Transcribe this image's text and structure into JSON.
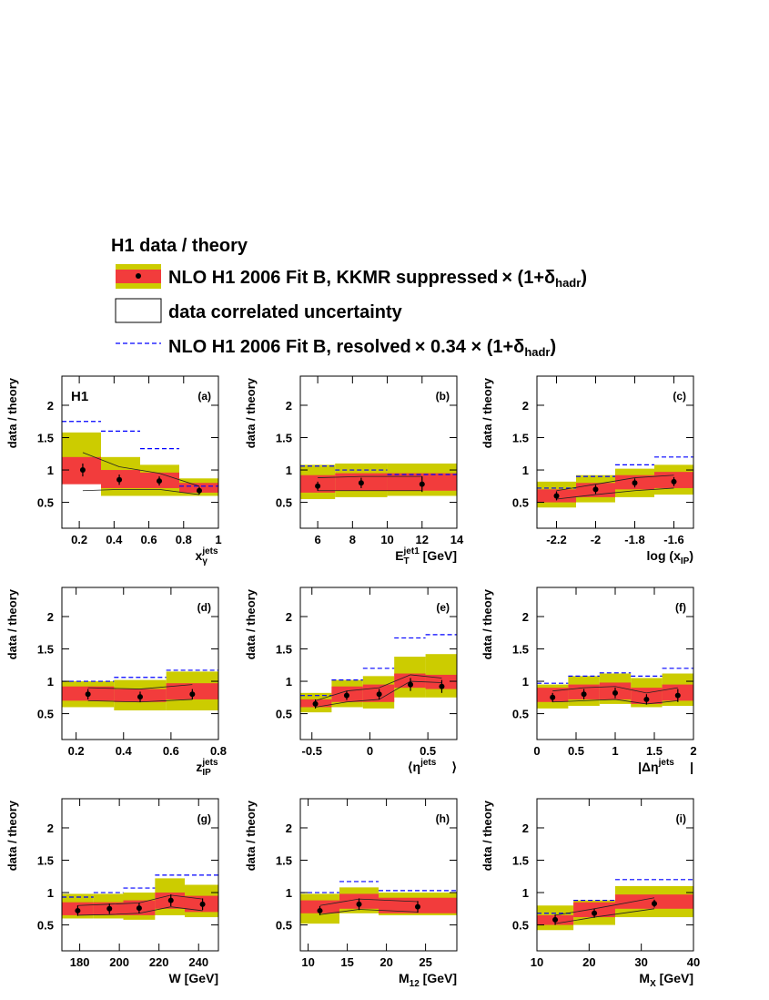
{
  "legend": {
    "title": "H1 data / theory",
    "entries": [
      {
        "parts": [
          "NLO H1 2006 Fit B, KKMR suppressed",
          "× (1+δ",
          "hadr",
          ")"
        ]
      },
      {
        "parts": [
          "data correlated uncertainty"
        ]
      },
      {
        "parts": [
          "NLO H1 2006 Fit B, resolved",
          "× 0.34 × (1+δ",
          "hadr",
          ")"
        ]
      }
    ]
  },
  "chart_data": [
    {
      "type": "ratio",
      "label": "(a)",
      "annotation": "H1",
      "ylabel": "data / theory",
      "xlabel": {
        "main": "x",
        "sup": "jets",
        "sub": "γ"
      },
      "xlim": [
        0.1,
        1
      ],
      "xticks": [
        0.2,
        0.4,
        0.6,
        0.8,
        1
      ],
      "ylim": [
        0.1,
        2.45
      ],
      "yticks": [
        0.5,
        1,
        1.5,
        2
      ],
      "bins": [
        0.1,
        0.325,
        0.55,
        0.775,
        1
      ],
      "outer_band": {
        "color": "#cccc00",
        "low": [
          0.9,
          0.6,
          0.6,
          0.6
        ],
        "high": [
          1.58,
          1.2,
          1.08,
          0.87
        ]
      },
      "inner_band": {
        "color": "#f23c3c",
        "low": [
          0.78,
          0.72,
          0.72,
          0.65
        ],
        "high": [
          1.2,
          1.0,
          0.96,
          0.8
        ]
      },
      "resolved": {
        "color": "#0000ff",
        "values": [
          1.75,
          1.6,
          1.33,
          0.75
        ]
      },
      "x": [
        0.22,
        0.43,
        0.66,
        0.89
      ],
      "values": [
        1.0,
        0.85,
        0.83,
        0.68
      ],
      "errors": [
        0.1,
        0.08,
        0.07,
        0.06
      ],
      "corr_low": [
        0.68,
        0.7,
        0.7,
        0.62
      ],
      "corr_high": [
        1.27,
        1.05,
        0.95,
        0.75
      ]
    },
    {
      "type": "ratio",
      "label": "(b)",
      "ylabel": "data / theory",
      "xlabel": {
        "main": "E",
        "sup": "jet1",
        "sub": "T",
        "tail": " [GeV]"
      },
      "xlim": [
        5,
        14
      ],
      "xticks": [
        6,
        8,
        10,
        12,
        14
      ],
      "ylim": [
        0.1,
        2.45
      ],
      "yticks": [
        0.5,
        1,
        1.5,
        2
      ],
      "bins": [
        5,
        7,
        10,
        14
      ],
      "outer_band": {
        "color": "#cccc00",
        "low": [
          0.55,
          0.58,
          0.6
        ],
        "high": [
          1.08,
          1.1,
          1.1
        ]
      },
      "inner_band": {
        "color": "#f23c3c",
        "low": [
          0.65,
          0.68,
          0.68
        ],
        "high": [
          0.92,
          0.95,
          0.95
        ]
      },
      "resolved": {
        "color": "#0000ff",
        "values": [
          1.06,
          1.0,
          0.93
        ]
      },
      "x": [
        6,
        8.5,
        12
      ],
      "values": [
        0.75,
        0.8,
        0.78
      ],
      "errors": [
        0.07,
        0.08,
        0.12
      ],
      "corr_low": [
        0.68,
        0.68,
        0.68
      ],
      "corr_high": [
        0.88,
        0.9,
        0.9
      ]
    },
    {
      "type": "ratio",
      "label": "(c)",
      "ylabel": "data / theory",
      "xlabel": {
        "main": "log (x",
        "sub": "IP",
        "tail": ")"
      },
      "xlim": [
        -2.3,
        -1.5
      ],
      "xticks": [
        -2.2,
        -2,
        -1.8,
        -1.6
      ],
      "ylim": [
        0.1,
        2.45
      ],
      "yticks": [
        0.5,
        1,
        1.5,
        2
      ],
      "bins": [
        -2.3,
        -2.1,
        -1.9,
        -1.7,
        -1.5
      ],
      "outer_band": {
        "color": "#cccc00",
        "low": [
          0.42,
          0.5,
          0.58,
          0.62
        ],
        "high": [
          0.82,
          0.92,
          1.02,
          1.08
        ]
      },
      "inner_band": {
        "color": "#f23c3c",
        "low": [
          0.5,
          0.58,
          0.7,
          0.72
        ],
        "high": [
          0.7,
          0.8,
          0.92,
          0.97
        ]
      },
      "resolved": {
        "color": "#0000ff",
        "values": [
          0.72,
          0.9,
          1.08,
          1.2
        ]
      },
      "x": [
        -2.2,
        -2,
        -1.8,
        -1.6
      ],
      "values": [
        0.6,
        0.7,
        0.8,
        0.82
      ],
      "errors": [
        0.07,
        0.07,
        0.07,
        0.07
      ],
      "corr_low": [
        0.55,
        0.62,
        0.68,
        0.72
      ],
      "corr_high": [
        0.68,
        0.78,
        0.88,
        0.92
      ]
    },
    {
      "type": "ratio",
      "label": "(d)",
      "ylabel": "data / theory",
      "xlabel": {
        "main": "z",
        "sup": "jets",
        "sub": "IP"
      },
      "xlim": [
        0.14,
        0.8
      ],
      "xticks": [
        0.2,
        0.4,
        0.6,
        0.8
      ],
      "ylim": [
        0.1,
        2.45
      ],
      "yticks": [
        0.5,
        1,
        1.5,
        2
      ],
      "bins": [
        0.14,
        0.36,
        0.58,
        0.8
      ],
      "outer_band": {
        "color": "#cccc00",
        "low": [
          0.6,
          0.55,
          0.55
        ],
        "high": [
          1.0,
          1.02,
          1.15
        ]
      },
      "inner_band": {
        "color": "#f23c3c",
        "low": [
          0.7,
          0.68,
          0.72
        ],
        "high": [
          0.92,
          0.88,
          0.97
        ]
      },
      "resolved": {
        "color": "#0000ff",
        "values": [
          1.0,
          1.06,
          1.17
        ]
      },
      "x": [
        0.25,
        0.47,
        0.69
      ],
      "values": [
        0.8,
        0.76,
        0.8
      ],
      "errors": [
        0.08,
        0.08,
        0.08
      ],
      "corr_low": [
        0.7,
        0.68,
        0.72
      ],
      "corr_high": [
        0.9,
        0.88,
        0.95
      ]
    },
    {
      "type": "ratio",
      "label": "(e)",
      "ylabel": "data / theory",
      "xlabel": {
        "main": "⟨η",
        "sup": "jets",
        "tail": "⟩"
      },
      "xlim": [
        -0.6,
        0.75
      ],
      "xticks": [
        -0.5,
        0,
        0.5
      ],
      "ylim": [
        0.1,
        2.45
      ],
      "yticks": [
        0.5,
        1,
        1.5,
        2
      ],
      "bins": [
        -0.6,
        -0.33,
        -0.06,
        0.21,
        0.48,
        0.75
      ],
      "outer_band": {
        "color": "#cccc00",
        "low": [
          0.52,
          0.6,
          0.58,
          0.75,
          0.75
        ],
        "high": [
          0.82,
          1.02,
          1.08,
          1.38,
          1.42
        ]
      },
      "inner_band": {
        "color": "#f23c3c",
        "low": [
          0.6,
          0.68,
          0.68,
          0.9,
          0.88
        ],
        "high": [
          0.72,
          0.92,
          0.95,
          1.12,
          1.1
        ]
      },
      "resolved": {
        "color": "#0000ff",
        "values": [
          0.78,
          1.02,
          1.2,
          1.67,
          1.72
        ]
      },
      "x": [
        -0.47,
        -0.2,
        0.08,
        0.35,
        0.62
      ],
      "values": [
        0.65,
        0.78,
        0.8,
        0.95,
        0.92
      ],
      "errors": [
        0.07,
        0.07,
        0.08,
        0.1,
        0.1
      ],
      "corr_low": [
        0.6,
        0.68,
        0.72,
        1.0,
        0.98
      ],
      "corr_high": [
        0.7,
        0.85,
        0.9,
        1.1,
        1.05
      ]
    },
    {
      "type": "ratio",
      "label": "(f)",
      "ylabel": "data / theory",
      "xlabel": {
        "main": "|Δη",
        "sup": "jets",
        "tail": "|"
      },
      "xlim": [
        0,
        2
      ],
      "xticks": [
        0,
        0.5,
        1,
        1.5,
        2
      ],
      "ylim": [
        0.1,
        2.45
      ],
      "yticks": [
        0.5,
        1,
        1.5,
        2
      ],
      "bins": [
        0,
        0.4,
        0.8,
        1.2,
        1.6,
        2
      ],
      "outer_band": {
        "color": "#cccc00",
        "low": [
          0.58,
          0.62,
          0.65,
          0.6,
          0.62
        ],
        "high": [
          0.95,
          1.08,
          1.12,
          1.05,
          1.12
        ]
      },
      "inner_band": {
        "color": "#f23c3c",
        "low": [
          0.68,
          0.72,
          0.72,
          0.65,
          0.7
        ],
        "high": [
          0.9,
          0.95,
          0.98,
          0.9,
          0.95
        ]
      },
      "resolved": {
        "color": "#0000ff",
        "values": [
          0.97,
          1.08,
          1.13,
          1.08,
          1.2
        ]
      },
      "x": [
        0.2,
        0.6,
        1,
        1.4,
        1.8
      ],
      "values": [
        0.75,
        0.8,
        0.82,
        0.72,
        0.78
      ],
      "errors": [
        0.07,
        0.08,
        0.08,
        0.08,
        0.1
      ],
      "corr_low": [
        0.68,
        0.7,
        0.72,
        0.65,
        0.7
      ],
      "corr_high": [
        0.85,
        0.9,
        0.92,
        0.82,
        0.9
      ]
    },
    {
      "type": "ratio",
      "label": "(g)",
      "ylabel": "data / theory",
      "xlabel": {
        "main": "W [GeV]"
      },
      "xlim": [
        171,
        250
      ],
      "xticks": [
        180,
        200,
        220,
        240
      ],
      "ylim": [
        0.1,
        2.45
      ],
      "yticks": [
        0.5,
        1,
        1.5,
        2
      ],
      "bins": [
        171,
        187,
        202,
        218,
        233,
        250
      ],
      "outer_band": {
        "color": "#cccc00",
        "low": [
          0.6,
          0.6,
          0.58,
          0.65,
          0.62
        ],
        "high": [
          0.98,
          0.98,
          1.0,
          1.22,
          1.12
        ]
      },
      "inner_band": {
        "color": "#f23c3c",
        "low": [
          0.65,
          0.65,
          0.65,
          0.75,
          0.7
        ],
        "high": [
          0.85,
          0.85,
          0.88,
          1.0,
          0.95
        ]
      },
      "resolved": {
        "color": "#0000ff",
        "values": [
          0.93,
          1.0,
          1.07,
          1.27,
          1.27
        ]
      },
      "x": [
        179,
        195,
        210,
        226,
        242
      ],
      "values": [
        0.72,
        0.75,
        0.76,
        0.88,
        0.82
      ],
      "errors": [
        0.08,
        0.08,
        0.08,
        0.09,
        0.09
      ],
      "corr_low": [
        0.65,
        0.66,
        0.68,
        0.78,
        0.72
      ],
      "corr_high": [
        0.8,
        0.82,
        0.84,
        0.96,
        0.9
      ]
    },
    {
      "type": "ratio",
      "label": "(h)",
      "ylabel": "data / theory",
      "xlabel": {
        "main": "M",
        "sub": "12",
        "tail": " [GeV]"
      },
      "xlim": [
        9,
        29
      ],
      "xticks": [
        10,
        15,
        20,
        25
      ],
      "ylim": [
        0.1,
        2.45
      ],
      "yticks": [
        0.5,
        1,
        1.5,
        2
      ],
      "bins": [
        9,
        14,
        19,
        29
      ],
      "outer_band": {
        "color": "#cccc00",
        "low": [
          0.52,
          0.68,
          0.65
        ],
        "high": [
          0.98,
          1.08,
          1.0
        ]
      },
      "inner_band": {
        "color": "#f23c3c",
        "low": [
          0.68,
          0.75,
          0.68
        ],
        "high": [
          0.88,
          0.98,
          0.92
        ]
      },
      "resolved": {
        "color": "#0000ff",
        "values": [
          1.0,
          1.17,
          1.03
        ]
      },
      "x": [
        11.5,
        16.5,
        24
      ],
      "values": [
        0.72,
        0.82,
        0.78
      ],
      "errors": [
        0.07,
        0.09,
        0.09
      ],
      "corr_low": [
        0.66,
        0.74,
        0.7
      ],
      "corr_high": [
        0.8,
        0.9,
        0.86
      ]
    },
    {
      "type": "ratio",
      "label": "(i)",
      "ylabel": "data / theory",
      "xlabel": {
        "main": "M",
        "sub": "X",
        "tail": " [GeV]"
      },
      "xlim": [
        10,
        40
      ],
      "xticks": [
        10,
        20,
        30,
        40
      ],
      "ylim": [
        0.1,
        2.45
      ],
      "yticks": [
        0.5,
        1,
        1.5,
        2
      ],
      "bins": [
        10,
        17,
        25,
        40
      ],
      "outer_band": {
        "color": "#cccc00",
        "low": [
          0.42,
          0.5,
          0.62
        ],
        "high": [
          0.8,
          0.88,
          1.1
        ]
      },
      "inner_band": {
        "color": "#f23c3c",
        "low": [
          0.5,
          0.62,
          0.75
        ],
        "high": [
          0.65,
          0.85,
          0.97
        ]
      },
      "resolved": {
        "color": "#0000ff",
        "values": [
          0.68,
          0.88,
          1.2
        ]
      },
      "x": [
        13.5,
        21,
        32.5
      ],
      "values": [
        0.58,
        0.68,
        0.83
      ],
      "errors": [
        0.08,
        0.07,
        0.06
      ],
      "corr_low": [
        0.52,
        0.62,
        0.75
      ],
      "corr_high": [
        0.65,
        0.75,
        0.92
      ]
    }
  ]
}
